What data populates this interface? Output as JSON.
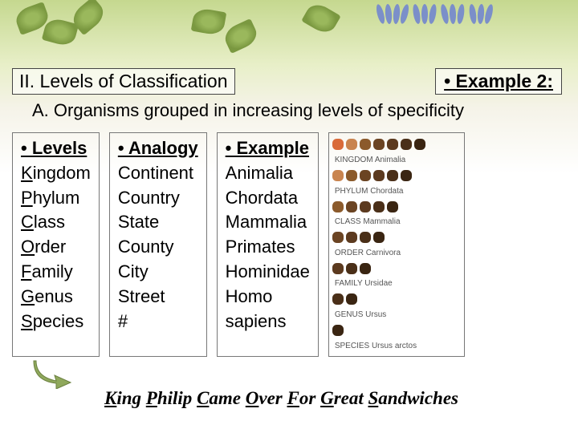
{
  "heading": "II.  Levels of Classification",
  "example_label": "• Example 2:",
  "subheading": "A.  Organisms grouped in increasing levels of specificity",
  "columns": [
    {
      "header": "• Levels",
      "items": [
        "Kingdom",
        "Phylum",
        "Class",
        "Order",
        "Family",
        "Genus",
        "Species"
      ],
      "underlineLetters": true
    },
    {
      "header": "• Analogy",
      "items": [
        "Continent",
        "Country",
        "State",
        "County",
        "City",
        "Street",
        "#"
      ],
      "underlineLetters": false
    },
    {
      "header": "• Example",
      "items": [
        "Animalia",
        "Chordata",
        "Mammalia",
        "Primates",
        "Hominidae",
        "Homo",
        "sapiens"
      ],
      "underlineLetters": false
    }
  ],
  "diagram": {
    "labels": [
      "KINGDOM Animalia",
      "PHYLUM Chordata",
      "CLASS Mammalia",
      "ORDER Carnivora",
      "FAMILY Ursidae",
      "GENUS Ursus",
      "SPECIES Ursus arctos"
    ],
    "counts": [
      7,
      6,
      5,
      4,
      3,
      2,
      1
    ],
    "colors": [
      "#d96b3a",
      "#c9844f",
      "#8b5a2b",
      "#6b4423",
      "#5c3a1f",
      "#4a2f18",
      "#3a2512"
    ]
  },
  "mnemonic_parts": [
    "K",
    "ing ",
    "P",
    "hilip ",
    "C",
    "ame ",
    "O",
    "ver ",
    "F",
    "or ",
    "G",
    "reat ",
    "S",
    "andwiches"
  ],
  "colors": {
    "leaf": "#9ab85c",
    "flower": "#7b8fc9",
    "arrow": "#8fa85c"
  }
}
